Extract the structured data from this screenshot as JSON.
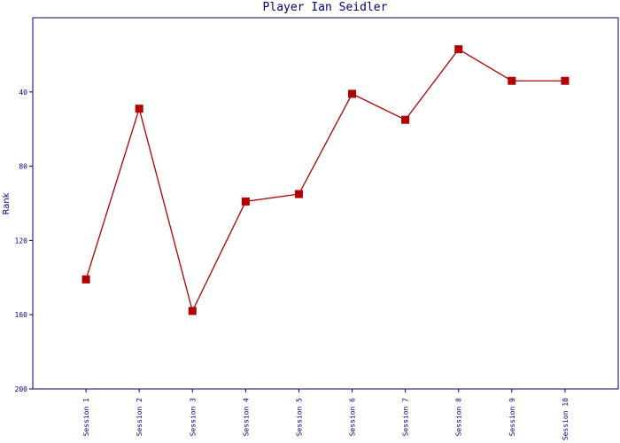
{
  "chart_data": {
    "type": "line",
    "title": "Player Ian Seidler",
    "ylabel": "Rank",
    "categories": [
      "Session 1",
      "Session 2",
      "Session 3",
      "Session 4",
      "Session 5",
      "Session 6",
      "Session 7",
      "Session 8",
      "Session 9",
      "Session 10"
    ],
    "series": [
      {
        "color": "#b00000",
        "values": [
          141,
          49,
          158,
          99,
          95,
          41,
          55,
          17,
          34,
          34
        ]
      }
    ],
    "ylim": [
      0,
      200
    ],
    "yticks": [
      40,
      80,
      120,
      160,
      200
    ],
    "y_inverted": true,
    "grid": false
  }
}
